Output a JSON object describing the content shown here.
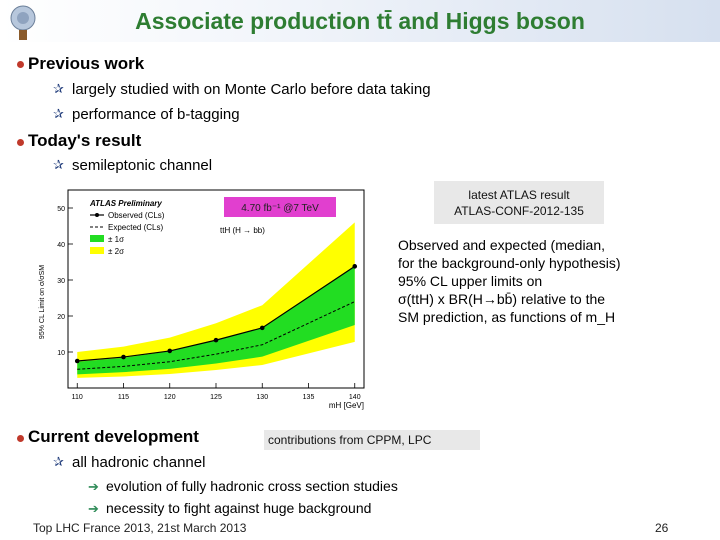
{
  "title": "Associate production tt̄ and Higgs boson",
  "sections": {
    "previous": {
      "heading": "Previous work",
      "items": [
        "largely studied with on Monte Carlo before data taking",
        "performance of b-tagging"
      ]
    },
    "today": {
      "heading": "Today's result",
      "items": [
        "semileptonic channel"
      ]
    },
    "current": {
      "heading": "Current development",
      "items": [
        "all hadronic channel"
      ],
      "subitems": [
        "evolution of fully hadronic  cross section studies",
        "necessity to fight against huge background"
      ]
    }
  },
  "boxes": {
    "atlas_result": [
      "latest ATLAS result",
      "ATLAS-CONF-2012-135"
    ],
    "contributions": "contributions from CPPM, LPC"
  },
  "description_lines": [
    "Observed and expected (median,",
    "for the background-only hypothesis)",
    "95% CL upper limits on",
    "σ(ttH) x BR(H→bb̄) relative to the",
    "SM prediction, as functions of m_H"
  ],
  "footer": {
    "left": "Top LHC France 2013, 21st March 2013",
    "page": "26"
  },
  "colors": {
    "title_green": "#2e7d32",
    "band_1sigma": "#22dd22",
    "band_2sigma": "#ffff00",
    "bullet_red": "#c0392b",
    "lumi_box": "#e13fcf"
  },
  "chart_data": {
    "type": "line",
    "title": "ATLAS Preliminary",
    "ylabel": "95% CL Limit on σ/σSM",
    "xlabel": "mH [GeV]",
    "x": [
      110,
      115,
      120,
      125,
      130,
      140
    ],
    "xlim": [
      109,
      141
    ],
    "ylim": [
      0,
      55
    ],
    "xticks": [
      110,
      115,
      120,
      125,
      130,
      135,
      140
    ],
    "yticks": [
      10,
      20,
      30,
      40,
      50
    ],
    "legend": [
      "Observed (CLs)",
      "Expected (CLs)",
      "± 1σ",
      "± 2σ"
    ],
    "annotation_process": "ttH (H → bb)",
    "annotation_lumi": "4.70 fb⁻¹ @7 TeV",
    "series": [
      {
        "name": "Observed (CLs)",
        "values": [
          7.5,
          8.6,
          10.3,
          13.3,
          16.7,
          33.8
        ]
      },
      {
        "name": "Expected (CLs)",
        "values": [
          5.2,
          6.0,
          7.3,
          9.4,
          12.0,
          24.0
        ]
      },
      {
        "name": "± 1σ",
        "lower": [
          3.8,
          4.4,
          5.3,
          6.8,
          8.7,
          17.5
        ],
        "upper": [
          7.3,
          8.4,
          10.2,
          13.2,
          16.8,
          34.0
        ]
      },
      {
        "name": "± 2σ",
        "lower": [
          2.8,
          3.2,
          3.9,
          5.0,
          6.4,
          12.8
        ],
        "upper": [
          10.0,
          11.5,
          14.0,
          18.0,
          23.0,
          46.0
        ]
      }
    ]
  }
}
